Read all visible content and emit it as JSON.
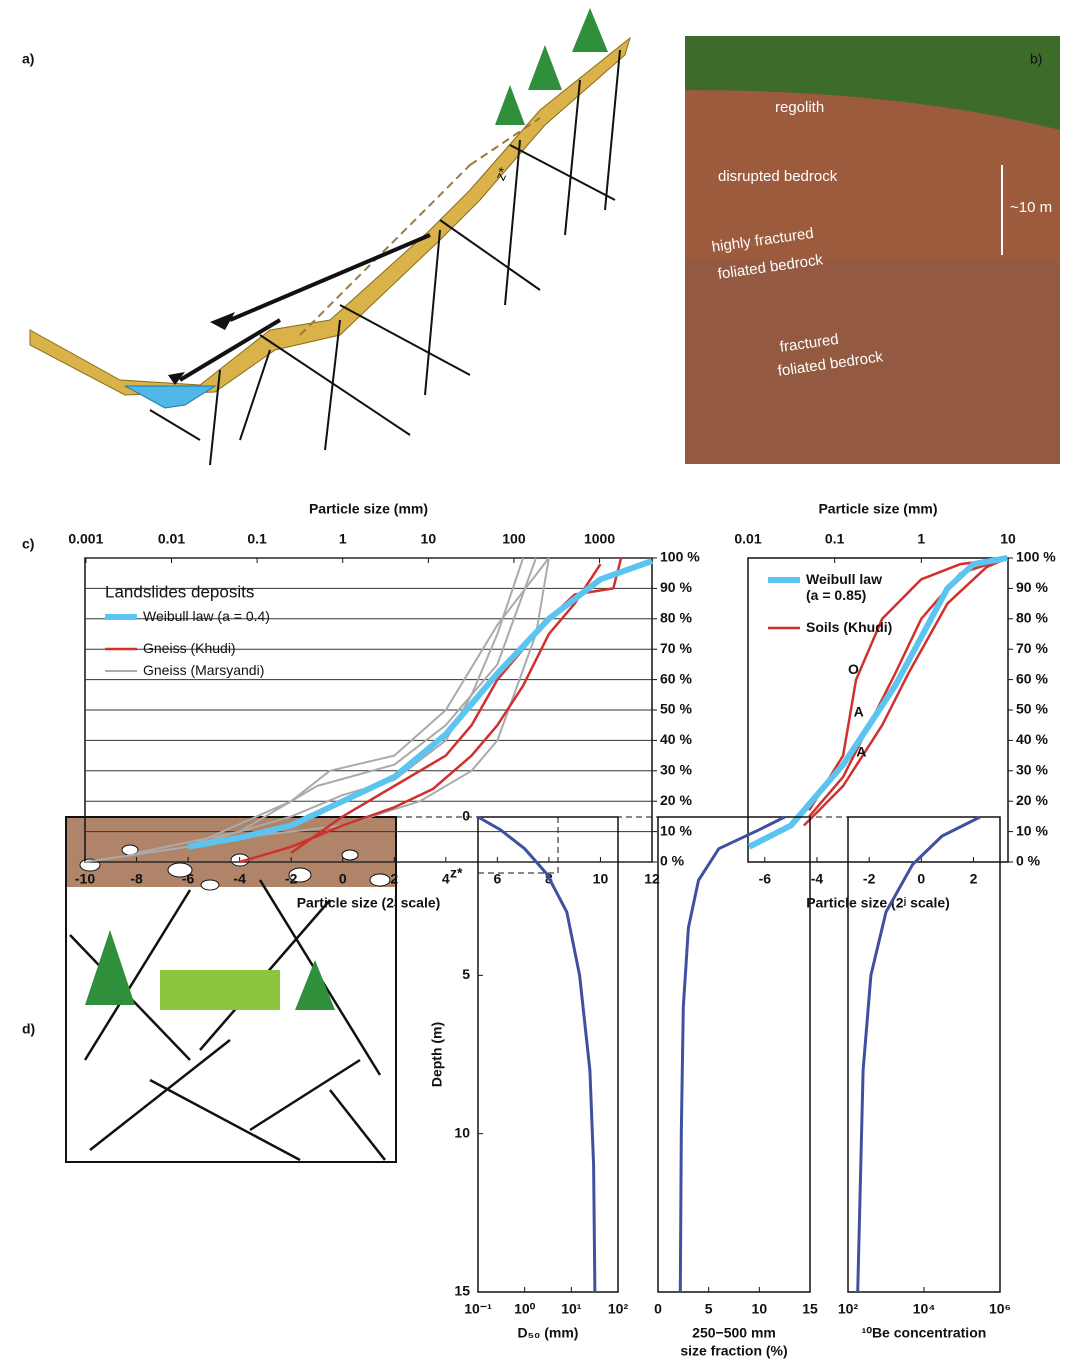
{
  "figure": {
    "panels": [
      "a)",
      "b)",
      "c)",
      "d)"
    ],
    "slope_label": "z*",
    "photo_labels": [
      "regolith",
      "disrupted bedrock",
      "highly fractured",
      "foliated bedrock",
      "fractured",
      "foliated bedrock"
    ],
    "scale_label": "~10 m"
  },
  "chart_data": [
    {
      "type": "line",
      "title": "Particle size (mm)",
      "x_label": "Particle size (2ʲ scale)",
      "xlim": [
        -10,
        12
      ],
      "xticks": [
        -10,
        -8,
        -6,
        -4,
        -2,
        0,
        2,
        4,
        6,
        8,
        10,
        12
      ],
      "x2lim": [
        0.0009765625,
        4096
      ],
      "x2log": true,
      "x2ticks": [
        0.001,
        0.01,
        0.1,
        1,
        10,
        100,
        1000
      ],
      "ylim": [
        0,
        100
      ],
      "yticks": [
        {
          "value": 0,
          "label": "0 %"
        },
        {
          "value": 10,
          "label": "10 %"
        },
        {
          "value": 20,
          "label": "20 %"
        },
        {
          "value": 30,
          "label": "30 %"
        },
        {
          "value": 40,
          "label": "40 %"
        },
        {
          "value": 50,
          "label": "50 %"
        },
        {
          "value": 60,
          "label": "60 %"
        },
        {
          "value": 70,
          "label": "70 %"
        },
        {
          "value": 80,
          "label": "80 %"
        },
        {
          "value": 90,
          "label": "90 %"
        },
        {
          "value": {
            "value": 100,
            "label": "100 %"
          },
          "label": "100 %"
        }
      ],
      "grid": true,
      "legend_title": "Landslides deposits",
      "series": [
        {
          "name": "Gneiss (Marsyandi)",
          "color": "#aaaaaa",
          "width": 2,
          "lines": [
            {
              "x": [
                -10,
                -6,
                -2,
                0,
                2,
                4,
                5,
                6,
                7
              ],
              "values": [
                0,
                5,
                15,
                22,
                27,
                40,
                55,
                75,
                100
              ]
            },
            {
              "x": [
                -8,
                -4,
                -1,
                2,
                4,
                6,
                7.5
              ],
              "values": [
                3,
                10,
                25,
                32,
                45,
                65,
                100
              ]
            },
            {
              "x": [
                -6,
                -2,
                -0.5,
                2,
                4,
                6,
                8
              ],
              "values": [
                5,
                20,
                30,
                35,
                50,
                78,
                100
              ]
            },
            {
              "x": [
                -4,
                0,
                3,
                5,
                6,
                7.5,
                8
              ],
              "values": [
                8,
                12,
                20,
                30,
                40,
                75,
                100
              ]
            }
          ]
        },
        {
          "name": "Gneiss (Khudi)",
          "color": "#d0312d",
          "width": 2.5,
          "lines": [
            {
              "x": [
                -4,
                -2,
                0,
                2,
                3.5,
                5,
                6,
                7,
                8,
                9,
                10
              ],
              "values": [
                0,
                5,
                12,
                18,
                24,
                35,
                45,
                58,
                75,
                85,
                98
              ]
            },
            {
              "x": [
                -2,
                0,
                2,
                4,
                5,
                6,
                7,
                8,
                9,
                10.5,
                10.8
              ],
              "values": [
                3,
                15,
                25,
                35,
                45,
                60,
                70,
                80,
                88,
                90,
                100
              ]
            }
          ]
        },
        {
          "name": "Weibull law (a = 0.4)",
          "color": "#5bc5ef",
          "width": 6,
          "lines": [
            {
              "x": [
                -6,
                -4,
                -2,
                0,
                2,
                4,
                6,
                8,
                10,
                12
              ],
              "values": [
                5,
                8,
                12,
                20,
                28,
                42,
                62,
                80,
                93,
                99
              ]
            }
          ]
        }
      ]
    },
    {
      "type": "line",
      "title": "Particle size (mm)",
      "x_label": "Particle size (2ʲ scale)",
      "xlim": [
        -6.644,
        3.322
      ],
      "xticks": [
        -6,
        -4,
        -2,
        0,
        2
      ],
      "x2lim": [
        0.01,
        10
      ],
      "x2log": true,
      "x2ticks": [
        0.01,
        0.1,
        1,
        10
      ],
      "ylim": [
        0,
        100
      ],
      "yticks": [
        {
          "value": 0,
          "label": "0 %"
        },
        {
          "value": 10,
          "label": "10 %"
        },
        {
          "value": 20,
          "label": "20 %"
        },
        {
          "value": 30,
          "label": "30 %"
        },
        {
          "value": 40,
          "label": "40 %"
        },
        {
          "value": 50,
          "label": "50 %"
        },
        {
          "value": 60,
          "label": "60 %"
        },
        {
          "value": 70,
          "label": "70 %"
        },
        {
          "value": 80,
          "label": "80 %"
        },
        {
          "value": 90,
          "label": "90 %"
        },
        {
          "value": 100,
          "label": "100 %"
        }
      ],
      "grid": false,
      "annotations": [
        "O",
        "A",
        "A"
      ],
      "series": [
        {
          "name": "Soils (Khudi)",
          "color": "#d0312d",
          "width": 2.5,
          "lines": [
            {
              "x": [
                -4.3,
                -3,
                -2.5,
                -1.5,
                0,
                1.5,
                3.3
              ],
              "values": [
                17,
                35,
                60,
                80,
                93,
                98,
                100
              ]
            },
            {
              "x": [
                -4.3,
                -3,
                -2,
                -1,
                0,
                1.5,
                3.3
              ],
              "values": [
                15,
                28,
                45,
                62,
                80,
                95,
                100
              ]
            },
            {
              "x": [
                -4.5,
                -3,
                -1.5,
                -0.5,
                1,
                2.5,
                3.3
              ],
              "values": [
                12,
                25,
                45,
                62,
                85,
                97,
                100
              ]
            }
          ]
        },
        {
          "name": "Weibull law\n(a = 0.85)",
          "color": "#5bc5ef",
          "width": 6,
          "lines": [
            {
              "x": [
                -6.6,
                -5,
                -4,
                -3,
                -2,
                -1,
                0,
                1,
                2,
                3.3
              ],
              "values": [
                5,
                12,
                22,
                32,
                45,
                58,
                74,
                90,
                98,
                100
              ]
            }
          ]
        }
      ]
    },
    {
      "type": "line",
      "x_label": "D₅₀ (mm)",
      "y_label": "Depth (m)",
      "annotation": "z*",
      "xlim": [
        0.1,
        100
      ],
      "xlog": true,
      "xticks": [
        {
          "value": 0.1,
          "label": "10⁻¹"
        },
        {
          "value": 1,
          "label": "10⁰"
        },
        {
          "value": 10,
          "label": "10¹"
        },
        {
          "value": 100,
          "label": "10²"
        }
      ],
      "ylim": [
        0,
        15
      ],
      "y_inverted": true,
      "yticks": [
        0,
        5,
        10,
        15
      ],
      "series": [
        {
          "color": "#4050a0",
          "width": 3,
          "lines": [
            {
              "x": [
                0.1,
                0.3,
                1,
                3,
                8,
                15,
                25,
                30,
                32
              ],
              "values": [
                0,
                0.4,
                1,
                1.8,
                3,
                5,
                8,
                11,
                15
              ]
            }
          ]
        }
      ]
    },
    {
      "type": "line",
      "x_label": "250−500 mm",
      "x_label2": "size fraction (%)",
      "xlim": [
        0,
        15
      ],
      "xticks": [
        0,
        5,
        10,
        15
      ],
      "ylim": [
        0,
        15
      ],
      "y_inverted": true,
      "series": [
        {
          "color": "#4050a0",
          "width": 3,
          "lines": [
            {
              "x": [
                12.5,
                10,
                6,
                4,
                3,
                2.5,
                2.3,
                2.2
              ],
              "values": [
                0,
                0.4,
                1,
                2,
                3.5,
                6,
                10,
                15
              ]
            }
          ]
        }
      ]
    },
    {
      "type": "line",
      "x_label": "¹⁰Be concentration",
      "xlim": [
        100,
        1000000
      ],
      "xlog": true,
      "xticks": [
        {
          "value": 100,
          "label": "10²"
        },
        {
          "value": 10000,
          "label": "10⁴"
        },
        {
          "value": 1000000,
          "label": "10⁶"
        }
      ],
      "ylim": [
        0,
        15
      ],
      "y_inverted": true,
      "series": [
        {
          "color": "#4050a0",
          "width": 3,
          "lines": [
            {
              "x": [
                300000,
                30000,
                5000,
                1000,
                400,
                250,
                180
              ],
              "values": [
                0,
                0.6,
                1.5,
                3,
                5,
                8,
                15
              ]
            }
          ]
        }
      ]
    }
  ]
}
